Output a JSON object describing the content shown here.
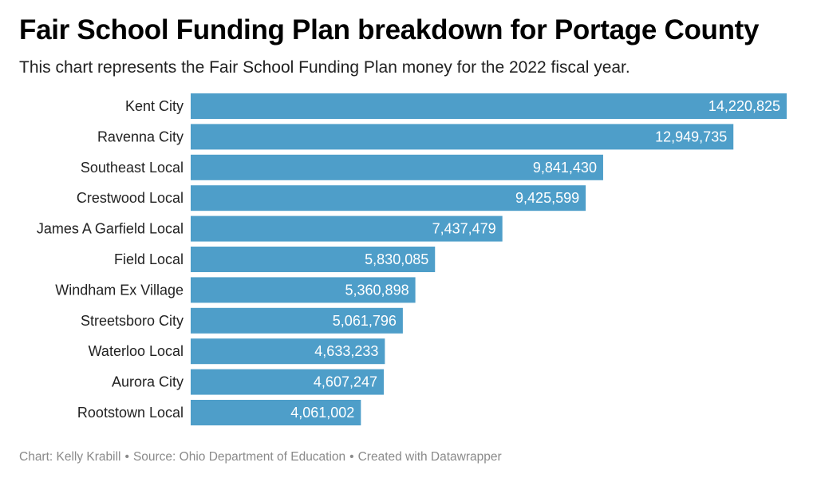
{
  "colors": {
    "bar": "#4e9ec9",
    "bar_label": "#ffffff",
    "category_label": "#222222"
  },
  "chart_data": {
    "type": "bar",
    "orientation": "horizontal",
    "title": "Fair School Funding Plan breakdown for Portage County",
    "subtitle": "This chart represents the Fair School Funding Plan money for the 2022 fiscal year.",
    "categories": [
      "Kent City",
      "Ravenna City",
      "Southeast Local",
      "Crestwood Local",
      "James A Garfield Local",
      "Field Local",
      "Windham Ex Village",
      "Streetsboro City",
      "Waterloo Local",
      "Aurora City",
      "Rootstown Local"
    ],
    "values": [
      14220825,
      12949735,
      9841430,
      9425599,
      7437479,
      5830085,
      5360898,
      5061796,
      4633233,
      4607247,
      4061002
    ],
    "value_labels": [
      "14,220,825",
      "12,949,735",
      "9,841,430",
      "9,425,599",
      "7,437,479",
      "5,830,085",
      "5,360,898",
      "5,061,796",
      "4,633,233",
      "4,607,247",
      "4,061,002"
    ],
    "xlim": [
      0,
      14220825
    ],
    "grid": false,
    "legend": "none"
  },
  "footer": {
    "chart_credit": "Chart: Kelly Krabill",
    "source": "Source: Ohio Department of Education",
    "created_with": "Created with Datawrapper",
    "separator": "•"
  }
}
